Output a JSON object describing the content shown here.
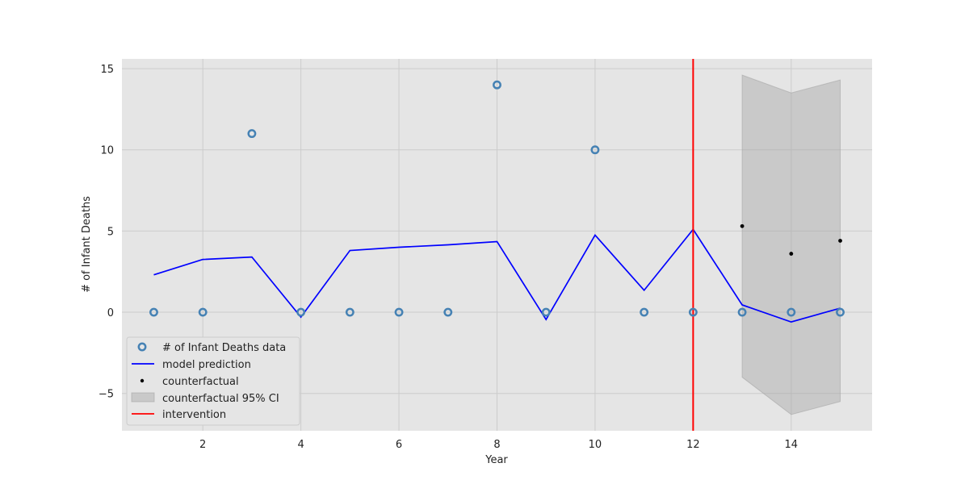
{
  "chart_data": {
    "type": "line",
    "title": "",
    "xlabel": "Year",
    "ylabel": "# of Infant Deaths",
    "xlim": [
      0.35,
      15.65
    ],
    "ylim": [
      -7.3,
      15.6
    ],
    "xticks": [
      2,
      4,
      6,
      8,
      10,
      12,
      14
    ],
    "yticks": [
      -5,
      0,
      5,
      10,
      15
    ],
    "grid": true,
    "legend_position": "lower-left",
    "colors": {
      "plot_background": "#e5e5e5",
      "grid": "#cccccc",
      "data_marker": "#4682b4",
      "model_line": "#0000ff",
      "counterfactual": "#000000",
      "ci_fill": "#a6a6a6",
      "intervention": "#ff0000"
    },
    "series": [
      {
        "name": "# of Infant Deaths data",
        "kind": "scatter",
        "x": [
          1,
          2,
          3,
          4,
          5,
          6,
          7,
          8,
          9,
          10,
          11,
          12,
          13,
          14,
          15
        ],
        "y": [
          0,
          0,
          11,
          0,
          0,
          0,
          0,
          14,
          0,
          10,
          0,
          0,
          0,
          0,
          0
        ]
      },
      {
        "name": "model prediction",
        "kind": "line",
        "x": [
          1,
          2,
          3,
          4,
          5,
          6,
          7,
          8,
          9,
          10,
          11,
          12,
          13,
          14,
          15
        ],
        "y": [
          2.3,
          3.25,
          3.4,
          -0.3,
          3.8,
          4.0,
          4.15,
          4.35,
          -0.45,
          4.75,
          1.35,
          5.1,
          0.45,
          -0.6,
          0.25
        ]
      },
      {
        "name": "counterfactual",
        "kind": "scatter",
        "x": [
          13,
          14,
          15
        ],
        "y": [
          5.3,
          3.6,
          4.4
        ]
      },
      {
        "name": "counterfactual 95% CI",
        "kind": "band",
        "x": [
          13,
          14,
          15
        ],
        "lower": [
          -4.0,
          -6.3,
          -5.5
        ],
        "upper": [
          14.6,
          13.5,
          14.3
        ]
      },
      {
        "name": "intervention",
        "kind": "vline",
        "x": 12
      }
    ]
  }
}
